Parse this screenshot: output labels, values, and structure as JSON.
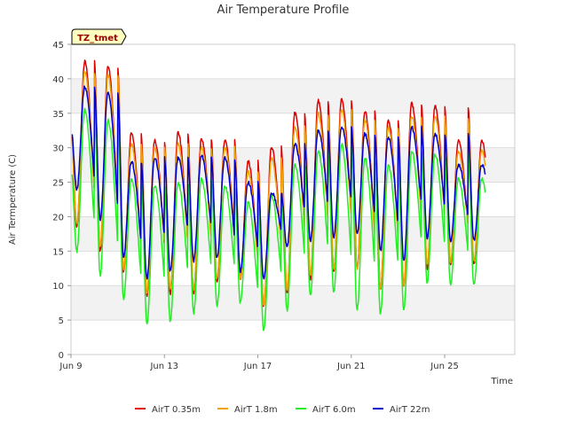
{
  "chart_data": {
    "type": "line",
    "title": "Air Temperature Profile",
    "xlabel": "Time",
    "ylabel": "Air Termperature (C)",
    "site_label": "TZ_tmet",
    "ylim": [
      0,
      45
    ],
    "yticks": [
      0,
      5,
      10,
      15,
      20,
      25,
      30,
      35,
      40,
      45
    ],
    "xlim": [
      0,
      19
    ],
    "xticks": [
      {
        "day": 0,
        "label": "Jun 9"
      },
      {
        "day": 4,
        "label": "Jun 13"
      },
      {
        "day": 8,
        "label": "Jun 17"
      },
      {
        "day": 12,
        "label": "Jun 21"
      },
      {
        "day": 16,
        "label": "Jun 25"
      }
    ],
    "x_start": "Jun 9",
    "x_end_day": 17.75,
    "peak_hour": 14,
    "grid": true,
    "legend_position": "bottom",
    "series": [
      {
        "name": "AirT 0.35m",
        "color": "#dd0000",
        "daily_max": [
          42.5,
          41.8,
          32.2,
          31.0,
          32.2,
          31.3,
          31.0,
          28.0,
          30.1,
          35.0,
          36.8,
          37.0,
          35.3,
          34.0,
          36.4,
          36.0,
          31.0
        ],
        "daily_min": [
          18.5,
          15.0,
          12.0,
          8.5,
          8.8,
          9.0,
          10.5,
          11.0,
          7.0,
          9.0,
          11.0,
          12.0,
          12.5,
          9.5,
          10.0,
          12.5,
          13.0
        ]
      },
      {
        "name": "AirT 1.8m",
        "color": "#f0a000",
        "daily_max": [
          41.0,
          40.5,
          30.5,
          30.0,
          30.5,
          30.0,
          30.0,
          26.5,
          28.5,
          33.0,
          35.0,
          35.5,
          34.0,
          33.0,
          34.5,
          34.5,
          29.5
        ],
        "daily_min": [
          19.0,
          15.5,
          12.5,
          9.0,
          9.5,
          9.5,
          11.0,
          11.0,
          7.0,
          9.5,
          11.5,
          12.5,
          12.5,
          9.5,
          10.0,
          13.0,
          13.5
        ]
      },
      {
        "name": "AirT 6.0m",
        "color": "#22ee22",
        "daily_max": [
          35.5,
          34.0,
          25.5,
          24.5,
          25.0,
          25.5,
          24.5,
          22.0,
          23.0,
          27.5,
          29.5,
          30.5,
          28.5,
          27.5,
          29.5,
          29.0,
          25.5
        ],
        "daily_min": [
          15.0,
          11.5,
          8.0,
          4.5,
          4.8,
          6.0,
          7.0,
          7.5,
          3.5,
          6.5,
          8.5,
          9.0,
          6.5,
          6.0,
          6.5,
          10.5,
          10.0
        ]
      },
      {
        "name": "AirT 22m",
        "color": "#0000cc",
        "daily_max": [
          38.8,
          38.0,
          28.0,
          28.5,
          28.5,
          28.8,
          28.5,
          25.0,
          23.5,
          30.5,
          32.5,
          33.0,
          32.0,
          31.5,
          33.0,
          32.0,
          27.5
        ],
        "daily_min": [
          24.0,
          19.5,
          14.0,
          11.0,
          12.0,
          13.5,
          14.0,
          12.0,
          11.0,
          15.5,
          16.5,
          17.0,
          17.5,
          15.0,
          13.5,
          17.0,
          16.5
        ]
      }
    ]
  }
}
